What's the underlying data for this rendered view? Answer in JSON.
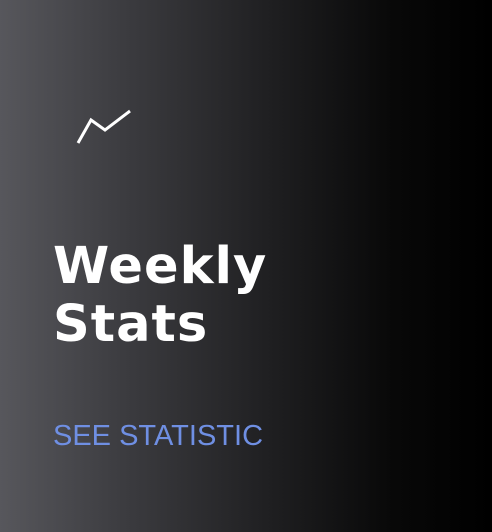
{
  "card": {
    "icon": "trending-up-icon",
    "title_line1": "Weekly",
    "title_line2": "Stats",
    "cta_label": "SEE STATISTIC"
  },
  "colors": {
    "title": "#ffffff",
    "cta": "#6f8fe3",
    "background_start": "#57575c",
    "background_end": "#000000"
  }
}
